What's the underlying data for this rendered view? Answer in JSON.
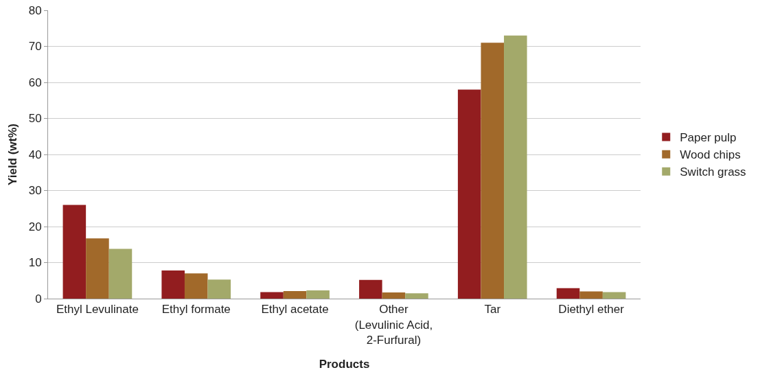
{
  "chart_data": {
    "type": "bar",
    "xlabel": "Products",
    "ylabel": "Yield (wt%)",
    "categories": [
      "Ethyl Levulinate",
      "Ethyl formate",
      "Ethyl acetate",
      "Other\n(Levulinic Acid,\n2-Furfural)",
      "Tar",
      "Diethyl ether"
    ],
    "series": [
      {
        "name": "Paper pulp",
        "color": "#921d1f",
        "values": [
          26,
          7.8,
          1.8,
          5.2,
          58,
          2.9
        ]
      },
      {
        "name": "Wood chips",
        "color": "#a1692a",
        "values": [
          16.7,
          7,
          2.1,
          1.7,
          71,
          2
        ]
      },
      {
        "name": "Switch grass",
        "color": "#a3a96a",
        "values": [
          13.8,
          5.3,
          2.3,
          1.5,
          73,
          1.8
        ]
      }
    ],
    "ylim": [
      0,
      80
    ],
    "yticks": [
      0,
      10,
      20,
      30,
      40,
      50,
      60,
      70,
      80
    ],
    "grid": "y",
    "legend": "right"
  }
}
